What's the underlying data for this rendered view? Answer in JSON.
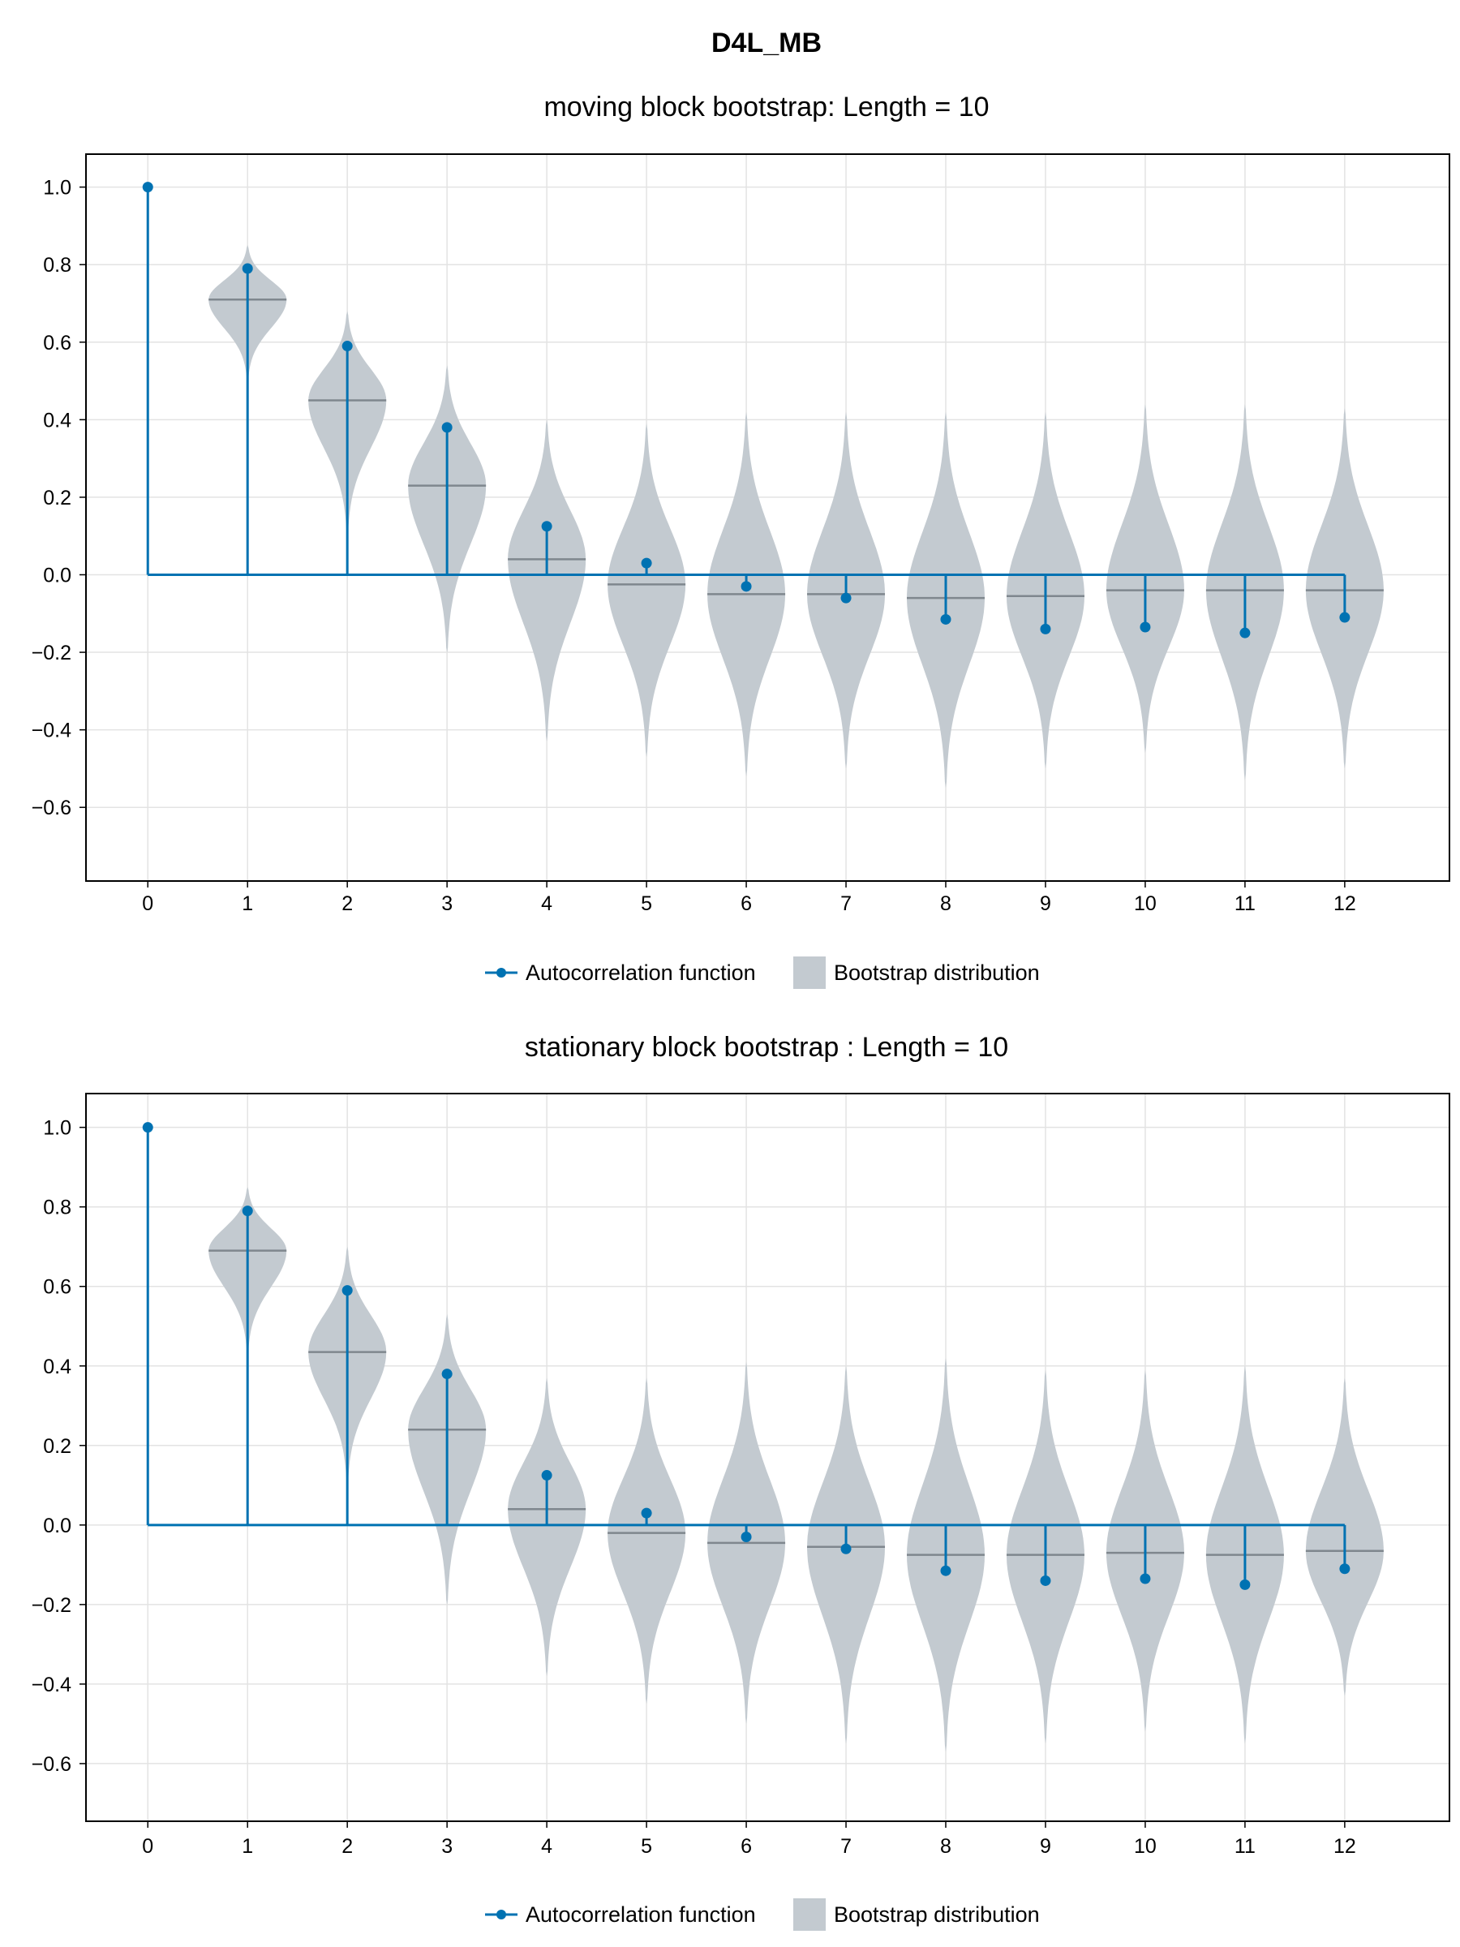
{
  "figure_title": "D4L_MB",
  "colors": {
    "acf": "#0072b2",
    "violin": "#c3cad0",
    "median": "#7f878e",
    "grid": "#e3e3e3",
    "frame": "#000000"
  },
  "chart_data": [
    {
      "type": "violin+stem",
      "title": "moving block bootstrap: Length = 10",
      "xlabel": "",
      "ylabel": "",
      "x_ticks": [
        0,
        1,
        2,
        3,
        4,
        5,
        6,
        7,
        8,
        9,
        10,
        11,
        12
      ],
      "y_ticks": [
        1.0,
        0.8,
        0.6,
        0.4,
        0.2,
        0.0,
        -0.2,
        -0.4,
        -0.6
      ],
      "ylim": [
        -0.79,
        1.085
      ],
      "xlim": [
        -0.62,
        13.05
      ],
      "grid": true,
      "legend": [
        "Autocorrelation function",
        "Bootstrap distribution"
      ],
      "legend_position": "bottom",
      "acf": {
        "name": "Autocorrelation function",
        "lags": [
          0,
          1,
          2,
          3,
          4,
          5,
          6,
          7,
          8,
          9,
          10,
          11,
          12
        ],
        "values": [
          1.0,
          0.79,
          0.59,
          0.38,
          0.125,
          0.03,
          -0.03,
          -0.06,
          -0.115,
          -0.14,
          -0.135,
          -0.15,
          -0.11
        ]
      },
      "bootstrap": {
        "name": "Bootstrap distribution",
        "lags": [
          1,
          2,
          3,
          4,
          5,
          6,
          7,
          8,
          9,
          10,
          11,
          12
        ],
        "medians": [
          0.71,
          0.45,
          0.23,
          0.04,
          -0.025,
          -0.05,
          -0.05,
          -0.06,
          -0.055,
          -0.04,
          -0.04,
          -0.04
        ],
        "mins": [
          0.5,
          0.1,
          -0.2,
          -0.43,
          -0.47,
          -0.52,
          -0.5,
          -0.55,
          -0.5,
          -0.46,
          -0.53,
          -0.5
        ],
        "maxs": [
          0.85,
          0.68,
          0.54,
          0.4,
          0.39,
          0.42,
          0.42,
          0.42,
          0.42,
          0.44,
          0.44,
          0.43
        ]
      }
    },
    {
      "type": "violin+stem",
      "title": "stationary block bootstrap : Length = 10",
      "xlabel": "",
      "ylabel": "",
      "x_ticks": [
        0,
        1,
        2,
        3,
        4,
        5,
        6,
        7,
        8,
        9,
        10,
        11,
        12
      ],
      "y_ticks": [
        1.0,
        0.8,
        0.6,
        0.4,
        0.2,
        0.0,
        -0.2,
        -0.4,
        -0.6
      ],
      "ylim": [
        -0.745,
        1.085
      ],
      "xlim": [
        -0.62,
        13.05
      ],
      "grid": true,
      "legend": [
        "Autocorrelation function",
        "Bootstrap distribution"
      ],
      "legend_position": "bottom",
      "acf": {
        "name": "Autocorrelation function",
        "lags": [
          0,
          1,
          2,
          3,
          4,
          5,
          6,
          7,
          8,
          9,
          10,
          11,
          12
        ],
        "values": [
          1.0,
          0.79,
          0.59,
          0.38,
          0.125,
          0.03,
          -0.03,
          -0.06,
          -0.115,
          -0.14,
          -0.135,
          -0.15,
          -0.11
        ]
      },
      "bootstrap": {
        "name": "Bootstrap distribution",
        "lags": [
          1,
          2,
          3,
          4,
          5,
          6,
          7,
          8,
          9,
          10,
          11,
          12
        ],
        "medians": [
          0.69,
          0.435,
          0.24,
          0.04,
          -0.02,
          -0.045,
          -0.055,
          -0.075,
          -0.075,
          -0.07,
          -0.075,
          -0.065
        ],
        "mins": [
          0.43,
          0.1,
          -0.2,
          -0.38,
          -0.45,
          -0.5,
          -0.55,
          -0.57,
          -0.55,
          -0.52,
          -0.55,
          -0.43
        ],
        "maxs": [
          0.85,
          0.7,
          0.53,
          0.37,
          0.37,
          0.41,
          0.4,
          0.42,
          0.39,
          0.39,
          0.4,
          0.37
        ]
      }
    }
  ]
}
